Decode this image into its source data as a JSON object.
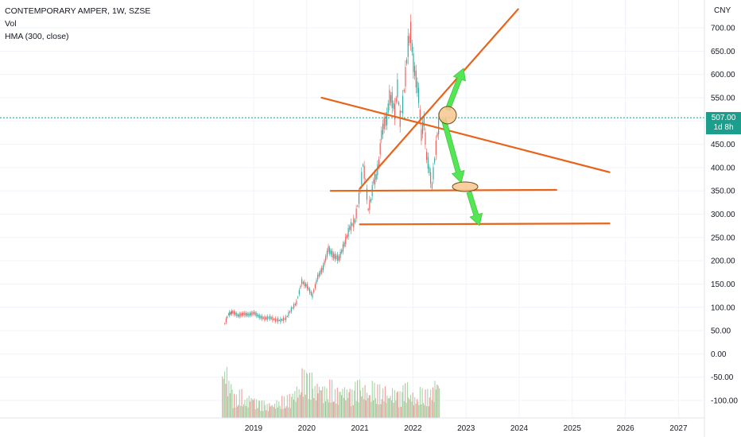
{
  "legend": {
    "symbol": "CONTEMPORARY AMPER, 1W, SZSE",
    "indicator_vol": "Vol",
    "indicator_hma": "HMA (300, close)"
  },
  "price_badge": {
    "price": "507.00",
    "countdown": "1d 8h"
  },
  "colors": {
    "up": "#26a69a",
    "down": "#ef5350",
    "vol_up": "#a5d6a7",
    "vol_down": "#ef9a9a",
    "trendline": "#e8641b",
    "arrow": "#55e655",
    "ellipse_fill": "#f8c78f",
    "last_price": "#1b9e8c"
  },
  "chart_data": {
    "type": "line",
    "currency": "CNY",
    "y_ticks": [
      "700.00",
      "650.00",
      "600.00",
      "550.00",
      "500.00",
      "450.00",
      "400.00",
      "350.00",
      "300.00",
      "250.00",
      "200.00",
      "150.00",
      "100.00",
      "50.00",
      "0.00",
      "-50.00",
      "-100.00"
    ],
    "ylim": [
      -150,
      750
    ],
    "x_ticks": [
      "2019",
      "2020",
      "2021",
      "2022",
      "2023",
      "2024",
      "2025",
      "2026",
      "2027"
    ],
    "xlim": [
      2018.0,
      2027.3
    ],
    "last_price": 507.0,
    "price_series": {
      "x": [
        2018.45,
        2018.52,
        2018.6,
        2018.7,
        2018.8,
        2018.9,
        2019.0,
        2019.1,
        2019.2,
        2019.3,
        2019.4,
        2019.5,
        2019.6,
        2019.7,
        2019.8,
        2019.9,
        2020.0,
        2020.1,
        2020.2,
        2020.3,
        2020.4,
        2020.5,
        2020.6,
        2020.7,
        2020.8,
        2020.9,
        2021.0,
        2021.05,
        2021.1,
        2021.15,
        2021.2,
        2021.25,
        2021.3,
        2021.35,
        2021.4,
        2021.45,
        2021.5,
        2021.55,
        2021.6,
        2021.65,
        2021.7,
        2021.75,
        2021.8,
        2021.85,
        2021.9,
        2021.95,
        2022.0,
        2022.05,
        2022.1,
        2022.15,
        2022.2,
        2022.25,
        2022.3,
        2022.35,
        2022.4,
        2022.45,
        2022.5
      ],
      "close": [
        65,
        85,
        90,
        82,
        86,
        84,
        88,
        80,
        76,
        78,
        73,
        72,
        76,
        95,
        110,
        155,
        145,
        125,
        165,
        185,
        225,
        210,
        205,
        235,
        270,
        285,
        350,
        405,
        375,
        310,
        330,
        370,
        380,
        410,
        470,
        495,
        505,
        550,
        545,
        520,
        570,
        505,
        535,
        595,
        660,
        690,
        625,
        590,
        555,
        470,
        500,
        425,
        395,
        360,
        415,
        470,
        507
      ]
    },
    "volume_series": {
      "x": [
        2018.45,
        2018.55,
        2018.65,
        2018.75,
        2018.85,
        2018.95,
        2019.05,
        2019.15,
        2019.25,
        2019.35,
        2019.45,
        2019.55,
        2019.65,
        2019.75,
        2019.85,
        2019.95,
        2020.05,
        2020.15,
        2020.25,
        2020.35,
        2020.45,
        2020.55,
        2020.65,
        2020.75,
        2020.85,
        2020.95,
        2021.05,
        2021.15,
        2021.25,
        2021.35,
        2021.45,
        2021.55,
        2021.65,
        2021.75,
        2021.85,
        2021.95,
        2022.05,
        2022.15,
        2022.25,
        2022.35,
        2022.45
      ],
      "values": [
        -10,
        -45,
        -85,
        -75,
        -90,
        -80,
        -95,
        -100,
        -105,
        -100,
        -95,
        -90,
        -85,
        -70,
        -60,
        -30,
        -40,
        -60,
        -50,
        -65,
        -55,
        -70,
        -60,
        -65,
        -75,
        -55,
        -60,
        -70,
        -55,
        -65,
        -65,
        -75,
        -70,
        -80,
        -60,
        -75,
        -85,
        -70,
        -75,
        -65,
        -40
      ]
    },
    "annotations": {
      "rising_trendline": [
        [
          2021.0,
          355
        ],
        [
          2023.98,
          740
        ]
      ],
      "descending_trendline": [
        [
          2020.28,
          550
        ],
        [
          2025.7,
          390
        ]
      ],
      "support_upper": [
        [
          2020.45,
          350
        ],
        [
          2024.7,
          352
        ]
      ],
      "support_lower": [
        [
          2021.0,
          278
        ],
        [
          2025.7,
          280
        ]
      ]
    }
  }
}
